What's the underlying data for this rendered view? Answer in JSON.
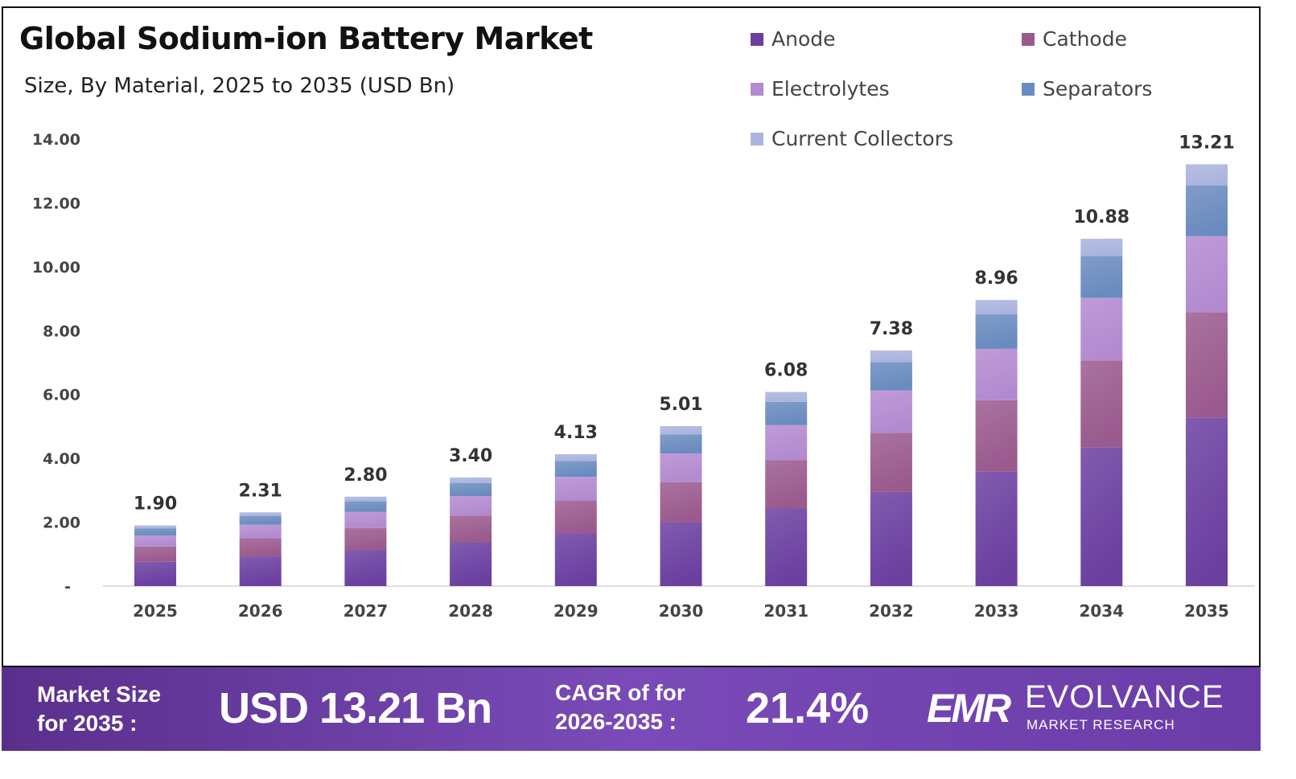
{
  "chart_data": {
    "type": "bar",
    "stacked": true,
    "title": "Global Sodium-ion Battery Market",
    "subtitle": "Size, By Material, 2025 to 2035 (USD Bn)",
    "categories": [
      "2025",
      "2026",
      "2027",
      "2028",
      "2029",
      "2030",
      "2031",
      "2032",
      "2033",
      "2034",
      "2035"
    ],
    "totals": [
      "1.90",
      "2.31",
      "2.80",
      "3.40",
      "4.13",
      "5.01",
      "6.08",
      "7.38",
      "8.96",
      "10.88",
      "13.21"
    ],
    "series": [
      {
        "name": "Anode",
        "color": "#6a3fa0",
        "values": [
          0.76,
          0.92,
          1.12,
          1.36,
          1.65,
          2.0,
          2.43,
          2.95,
          3.58,
          4.35,
          5.28
        ]
      },
      {
        "name": "Cathode",
        "color": "#9a5a8e",
        "values": [
          0.48,
          0.58,
          0.7,
          0.85,
          1.03,
          1.25,
          1.52,
          1.85,
          2.24,
          2.72,
          3.3
        ]
      },
      {
        "name": "Electrolytes",
        "color": "#b38ad0",
        "values": [
          0.34,
          0.42,
          0.5,
          0.61,
          0.74,
          0.9,
          1.09,
          1.33,
          1.61,
          1.96,
          2.38
        ]
      },
      {
        "name": "Separators",
        "color": "#6a8bbf",
        "values": [
          0.23,
          0.28,
          0.34,
          0.41,
          0.5,
          0.6,
          0.73,
          0.89,
          1.08,
          1.31,
          1.59
        ]
      },
      {
        "name": "Current Collectors",
        "color": "#aab4dd",
        "values": [
          0.09,
          0.11,
          0.14,
          0.17,
          0.21,
          0.26,
          0.31,
          0.36,
          0.45,
          0.54,
          0.66
        ]
      }
    ],
    "yticks": [
      "-",
      "2.00",
      "4.00",
      "6.00",
      "8.00",
      "10.00",
      "12.00",
      "14.00"
    ],
    "ylim": [
      0,
      14
    ],
    "grid": false,
    "legend_position": "top-right"
  },
  "footer": {
    "market_size_label_1": "Market Size",
    "market_size_label_2": "for 2035 :",
    "market_size_value": "USD 13.21 Bn",
    "cagr_label_1": "CAGR of for",
    "cagr_label_2": "2026-2035 :",
    "cagr_value": "21.4%",
    "logo_text": "EVOLVANCE",
    "logo_subtext": "MARKET RESEARCH",
    "logo_mark": "EMR"
  }
}
